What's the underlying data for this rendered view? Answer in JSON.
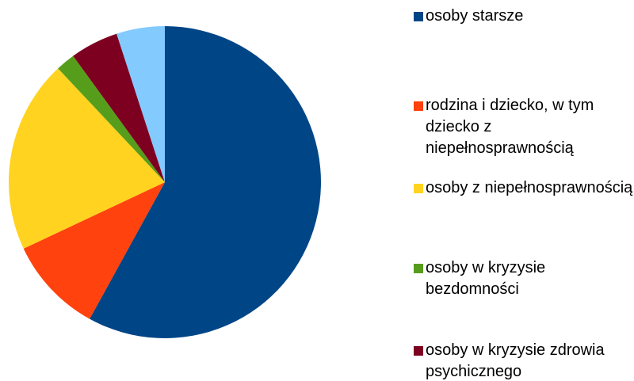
{
  "chart_data": {
    "type": "pie",
    "categories": [
      "osoby starsze",
      "rodzina i dziecko, w tym dziecko z niepełnosprawnością",
      "osoby z niepełnosprawnością",
      "osoby w kryzysie bezdomności",
      "osoby w kryzysie zdrowia psychicznego",
      null
    ],
    "values": [
      58,
      10,
      20,
      2,
      5,
      5
    ],
    "colors": [
      "#004586",
      "#ff420e",
      "#ffd320",
      "#579d1c",
      "#7e0021",
      "#83caff"
    ],
    "legend": "right"
  }
}
